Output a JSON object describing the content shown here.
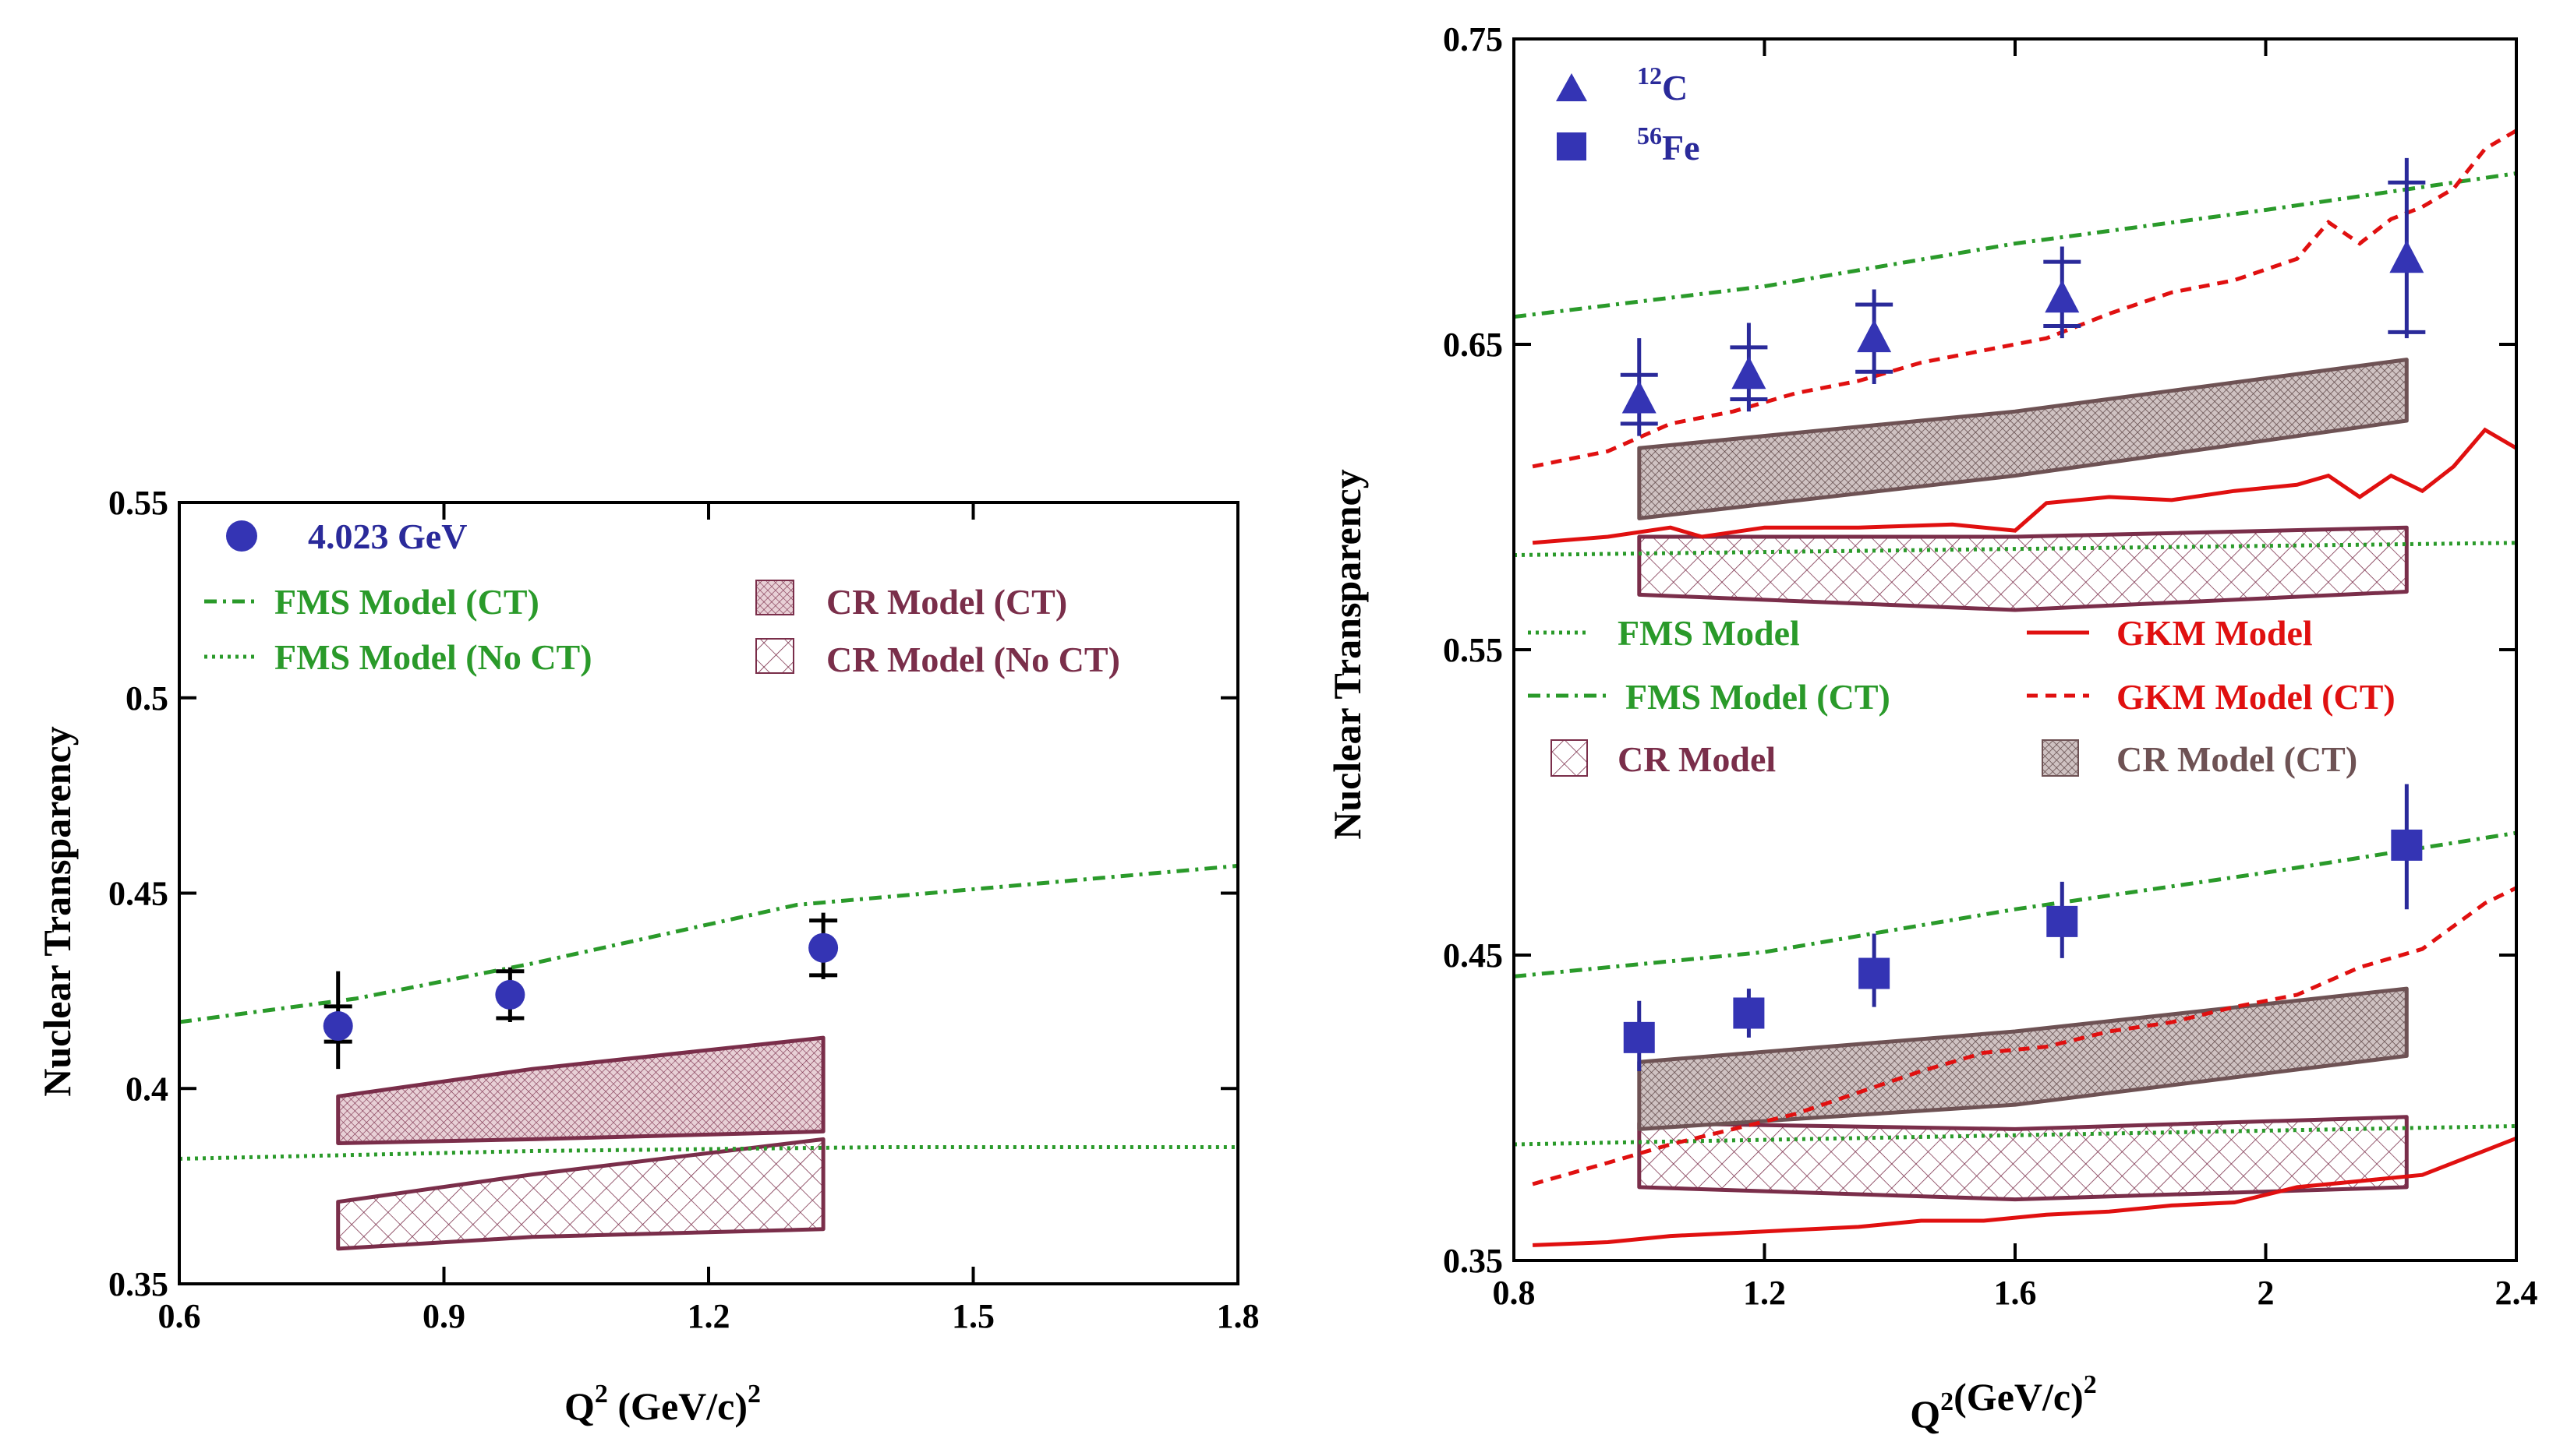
{
  "colors": {
    "axis": "#000000",
    "fms_green": "#2a9a2a",
    "gkm_red": "#e01010",
    "cr_maroon": "#7a2e4a",
    "cr_brown": "#6e5254",
    "data_blue": "#2a2a9a",
    "marker_blue": "#3434b4"
  },
  "chart_data": [
    {
      "type": "scatter",
      "panel": "left",
      "xlabel_main": "Q",
      "xlabel_sup": "2",
      "xlabel_rest": "(GeV/c)",
      "xlabel_rest_sup": "2",
      "ylabel": "Nuclear Transparency",
      "xlim": [
        0.6,
        1.8
      ],
      "ylim": [
        0.35,
        0.55
      ],
      "xticks": [
        "0.6",
        "0.9",
        "1.2",
        "1.5",
        "1.8"
      ],
      "xtick_values": [
        0.6,
        0.9,
        1.2,
        1.5,
        1.8
      ],
      "yticks": [
        "0.35",
        "0.4",
        "0.45",
        "0.5",
        "0.55"
      ],
      "ytick_values": [
        0.35,
        0.4,
        0.45,
        0.5,
        0.55
      ],
      "legend": {
        "data": "4.023 GeV",
        "fms_ct": "FMS Model (CT)",
        "fms_noct": "FMS Model (No CT)",
        "cr_ct": "CR Model (CT)",
        "cr_noct": "CR Model (No CT)"
      },
      "data_points": [
        {
          "x": 0.78,
          "y": 0.416,
          "err_lo": 0.405,
          "err_hi": 0.43,
          "sys_lo": 0.412,
          "sys_hi": 0.421
        },
        {
          "x": 0.975,
          "y": 0.424,
          "err_lo": 0.417,
          "err_hi": 0.431,
          "sys_lo": 0.418,
          "sys_hi": 0.43
        },
        {
          "x": 1.33,
          "y": 0.436,
          "err_lo": 0.428,
          "err_hi": 0.445,
          "sys_lo": 0.429,
          "sys_hi": 0.443
        }
      ],
      "fms_ct": {
        "x": [
          0.6,
          0.8,
          1.0,
          1.3,
          1.5,
          1.8
        ],
        "y": [
          0.417,
          0.423,
          0.432,
          0.447,
          0.451,
          0.457
        ]
      },
      "fms_noct": {
        "x": [
          0.6,
          1.0,
          1.4,
          1.8
        ],
        "y": [
          0.382,
          0.384,
          0.385,
          0.385
        ]
      },
      "cr_ct_band": {
        "x": [
          0.78,
          1.0,
          1.33
        ],
        "upper": [
          0.398,
          0.405,
          0.413
        ],
        "lower": [
          0.386,
          0.387,
          0.389
        ]
      },
      "cr_noct_band": {
        "x": [
          0.78,
          1.0,
          1.33
        ],
        "upper": [
          0.371,
          0.378,
          0.387
        ],
        "lower": [
          0.359,
          0.362,
          0.364
        ]
      }
    },
    {
      "type": "scatter",
      "panel": "right",
      "xlabel_main": "Q",
      "xlabel_sup": "2",
      "xlabel_rest": "(GeV/c)",
      "xlabel_rest_sup": "2",
      "ylabel": "Nuclear Transparency",
      "xlim": [
        0.8,
        2.4
      ],
      "ylim": [
        0.35,
        0.75
      ],
      "xticks": [
        "0.8",
        "1.2",
        "1.6",
        "2",
        "2.4"
      ],
      "xtick_values": [
        0.8,
        1.2,
        1.6,
        2.0,
        2.4
      ],
      "yticks": [
        "0.35",
        "0.45",
        "0.55",
        "0.65",
        "0.75"
      ],
      "ytick_values": [
        0.35,
        0.45,
        0.55,
        0.65,
        0.75
      ],
      "legend": {
        "c_sup": "12",
        "c_label": "C",
        "fe_sup": "56",
        "fe_label": "Fe",
        "fms": "FMS Model",
        "fms_ct": "FMS Model (CT)",
        "cr": "CR Model",
        "gkm": "GKM Model",
        "gkm_ct": "GKM Model (CT)",
        "cr_ct": "CR Model (CT)"
      },
      "carbon": [
        {
          "x": 1.0,
          "y": 0.632,
          "err_lo": 0.62,
          "err_hi": 0.652,
          "sys_lo": 0.624,
          "sys_hi": 0.64
        },
        {
          "x": 1.175,
          "y": 0.64,
          "err_lo": 0.628,
          "err_hi": 0.657,
          "sys_lo": 0.632,
          "sys_hi": 0.649
        },
        {
          "x": 1.375,
          "y": 0.652,
          "err_lo": 0.637,
          "err_hi": 0.668,
          "sys_lo": 0.641,
          "sys_hi": 0.663
        },
        {
          "x": 1.675,
          "y": 0.665,
          "err_lo": 0.652,
          "err_hi": 0.682,
          "sys_lo": 0.656,
          "sys_hi": 0.677
        },
        {
          "x": 2.225,
          "y": 0.678,
          "err_lo": 0.652,
          "err_hi": 0.711,
          "sys_lo": 0.654,
          "sys_hi": 0.703
        }
      ],
      "iron": [
        {
          "x": 1.0,
          "y": 0.423,
          "err_lo": 0.412,
          "err_hi": 0.435
        },
        {
          "x": 1.175,
          "y": 0.431,
          "err_lo": 0.423,
          "err_hi": 0.439
        },
        {
          "x": 1.375,
          "y": 0.444,
          "err_lo": 0.433,
          "err_hi": 0.457
        },
        {
          "x": 1.675,
          "y": 0.461,
          "err_lo": 0.449,
          "err_hi": 0.474
        },
        {
          "x": 2.225,
          "y": 0.486,
          "err_lo": 0.465,
          "err_hi": 0.506
        }
      ],
      "fms_ct_c": {
        "x": [
          0.8,
          1.2,
          1.6,
          2.0,
          2.4
        ],
        "y": [
          0.659,
          0.669,
          0.683,
          0.694,
          0.706
        ]
      },
      "fms_c": {
        "x": [
          0.8,
          2.4
        ],
        "y": [
          0.581,
          0.585
        ]
      },
      "gkm_ct_c": {
        "x": [
          0.83,
          0.95,
          1.05,
          1.15,
          1.25,
          1.35,
          1.45,
          1.55,
          1.65,
          1.75,
          1.85,
          1.95,
          2.05,
          2.1,
          2.15,
          2.2,
          2.25,
          2.3,
          2.35,
          2.4
        ],
        "y": [
          0.61,
          0.615,
          0.624,
          0.628,
          0.634,
          0.638,
          0.644,
          0.648,
          0.652,
          0.66,
          0.667,
          0.671,
          0.678,
          0.69,
          0.683,
          0.691,
          0.695,
          0.701,
          0.714,
          0.72
        ]
      },
      "gkm_c": {
        "x": [
          0.83,
          0.95,
          1.05,
          1.1,
          1.2,
          1.35,
          1.5,
          1.6,
          1.65,
          1.75,
          1.85,
          1.95,
          2.05,
          2.1,
          2.15,
          2.2,
          2.25,
          2.3,
          2.35,
          2.4
        ],
        "y": [
          0.585,
          0.587,
          0.59,
          0.587,
          0.59,
          0.59,
          0.591,
          0.589,
          0.598,
          0.6,
          0.599,
          0.602,
          0.604,
          0.607,
          0.6,
          0.607,
          0.602,
          0.61,
          0.622,
          0.616
        ]
      },
      "cr_ct_c_band": {
        "x": [
          1.0,
          1.6,
          2.225
        ],
        "upper": [
          0.616,
          0.628,
          0.645
        ],
        "lower": [
          0.593,
          0.607,
          0.625
        ]
      },
      "cr_c_band": {
        "x": [
          1.0,
          1.6,
          2.225
        ],
        "upper": [
          0.587,
          0.587,
          0.59
        ],
        "lower": [
          0.568,
          0.563,
          0.569
        ]
      },
      "fms_ct_fe": {
        "x": [
          0.8,
          1.2,
          1.6,
          2.0,
          2.4
        ],
        "y": [
          0.443,
          0.451,
          0.465,
          0.477,
          0.49
        ]
      },
      "fms_fe": {
        "x": [
          0.8,
          2.4
        ],
        "y": [
          0.388,
          0.394
        ]
      },
      "gkm_ct_fe": {
        "x": [
          0.83,
          0.95,
          1.05,
          1.15,
          1.25,
          1.35,
          1.45,
          1.55,
          1.65,
          1.75,
          1.85,
          1.95,
          2.05,
          2.15,
          2.25,
          2.35,
          2.4
        ],
        "y": [
          0.375,
          0.382,
          0.388,
          0.393,
          0.398,
          0.405,
          0.412,
          0.418,
          0.42,
          0.425,
          0.428,
          0.433,
          0.437,
          0.446,
          0.452,
          0.467,
          0.472
        ]
      },
      "gkm_fe": {
        "x": [
          0.83,
          0.95,
          1.05,
          1.15,
          1.25,
          1.35,
          1.45,
          1.55,
          1.65,
          1.75,
          1.85,
          1.95,
          2.05,
          2.15,
          2.25,
          2.35,
          2.4
        ],
        "y": [
          0.355,
          0.356,
          0.358,
          0.359,
          0.36,
          0.361,
          0.363,
          0.363,
          0.365,
          0.366,
          0.368,
          0.369,
          0.374,
          0.376,
          0.378,
          0.386,
          0.39
        ]
      },
      "cr_ct_fe_band": {
        "x": [
          1.0,
          1.6,
          2.225
        ],
        "upper": [
          0.415,
          0.425,
          0.439
        ],
        "lower": [
          0.393,
          0.401,
          0.417
        ]
      },
      "cr_fe_band": {
        "x": [
          1.0,
          1.6,
          2.225
        ],
        "upper": [
          0.395,
          0.393,
          0.397
        ],
        "lower": [
          0.374,
          0.37,
          0.374
        ]
      }
    }
  ]
}
